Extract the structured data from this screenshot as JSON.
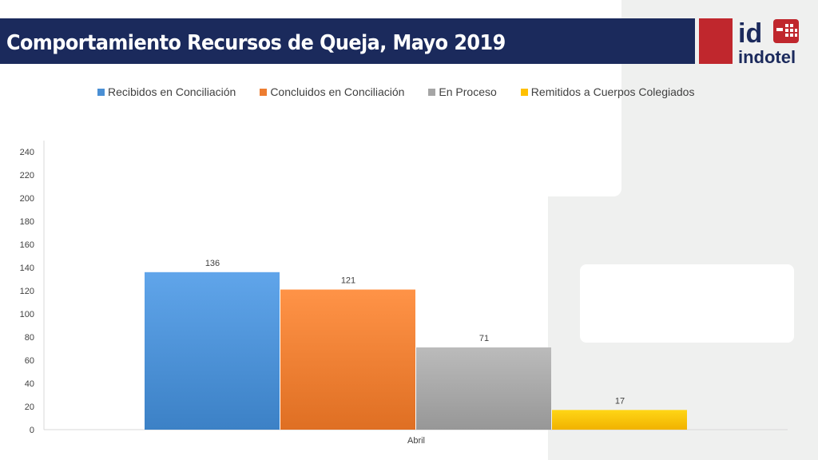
{
  "header": {
    "title": "Comportamiento Recursos de Queja, Mayo 2019"
  },
  "logo": {
    "mark_text": "id",
    "name_text": "indotel"
  },
  "colors": {
    "title_bar": "#1b2a5c",
    "logo_red": "#c0272d"
  },
  "chart_data": {
    "type": "bar",
    "title": "",
    "xlabel": "",
    "ylabel": "",
    "categories": [
      "Abril"
    ],
    "ylim": [
      0,
      240
    ],
    "yticks": [
      0,
      20,
      40,
      60,
      80,
      100,
      120,
      140,
      160,
      180,
      200,
      220,
      240
    ],
    "legend_position": "top",
    "grid": false,
    "series": [
      {
        "name": "Recibidos en Conciliación",
        "values": [
          136
        ],
        "color": "#4a8fd4"
      },
      {
        "name": "Concluidos en Conciliación",
        "values": [
          121
        ],
        "color": "#ed7d31"
      },
      {
        "name": "En Proceso",
        "values": [
          71
        ],
        "color": "#a5a5a5"
      },
      {
        "name": "Remitidos a Cuerpos Colegiados",
        "values": [
          17
        ],
        "color": "#ffc000"
      }
    ]
  }
}
